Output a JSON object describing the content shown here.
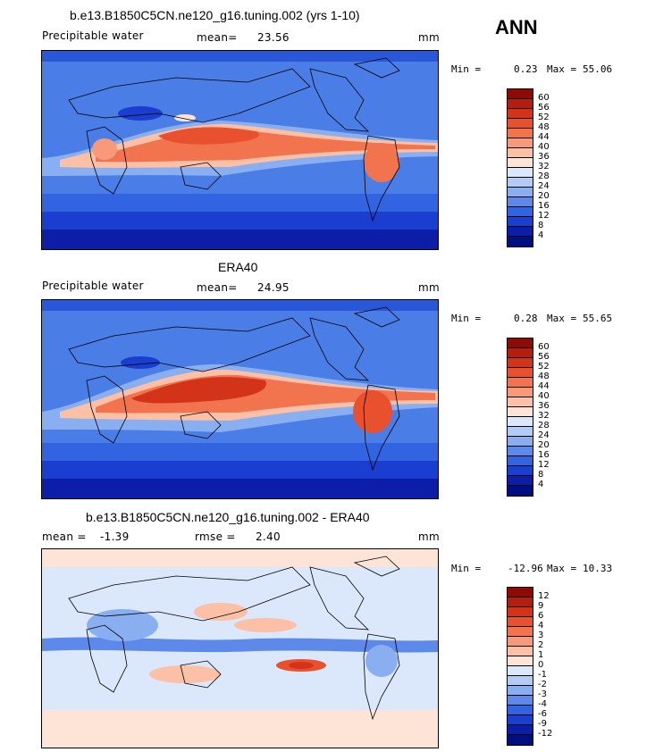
{
  "season": "ANN",
  "panels": [
    {
      "title": "b.e13.B1850C5CN.ne120_g16.tuning.002 (yrs 1-10)",
      "variable": "Precipitable water",
      "stat1_label": "mean=",
      "stat1_value": "23.56",
      "stat2_label": "",
      "stat2_value": "",
      "units": "mm",
      "min_label": "Min =",
      "min_value": "0.23",
      "max_label": "Max =",
      "max_value": "55.06",
      "colorbar_labels": [
        "60",
        "56",
        "52",
        "48",
        "44",
        "40",
        "36",
        "32",
        "28",
        "24",
        "20",
        "16",
        "12",
        "8",
        "4"
      ],
      "colorbar_colors": [
        "#8e0a06",
        "#b41e0f",
        "#d33419",
        "#e9502d",
        "#f2744f",
        "#f89a7a",
        "#fbc0a6",
        "#fde4d6",
        "#dbe7fb",
        "#b3ccf5",
        "#8aaff0",
        "#5d8aea",
        "#3263e0",
        "#1a3fd0",
        "#0c1ea8",
        "#000f80"
      ]
    },
    {
      "title": "ERA40",
      "variable": "Precipitable water",
      "stat1_label": "mean=",
      "stat1_value": "24.95",
      "stat2_label": "",
      "stat2_value": "",
      "units": "mm",
      "min_label": "Min =",
      "min_value": "0.28",
      "max_label": "Max =",
      "max_value": "55.65",
      "colorbar_labels": [
        "60",
        "56",
        "52",
        "48",
        "44",
        "40",
        "36",
        "32",
        "28",
        "24",
        "20",
        "16",
        "12",
        "8",
        "4"
      ],
      "colorbar_colors": [
        "#8e0a06",
        "#b41e0f",
        "#d33419",
        "#e9502d",
        "#f2744f",
        "#f89a7a",
        "#fbc0a6",
        "#fde4d6",
        "#dbe7fb",
        "#b3ccf5",
        "#8aaff0",
        "#5d8aea",
        "#3263e0",
        "#1a3fd0",
        "#0c1ea8",
        "#000f80"
      ]
    },
    {
      "title": "b.e13.B1850C5CN.ne120_g16.tuning.002 - ERA40",
      "variable": "",
      "stat1_label": "mean =",
      "stat1_value": "-1.39",
      "stat2_label": "rmse =",
      "stat2_value": "2.40",
      "units": "mm",
      "min_label": "Min =",
      "min_value": "-12.96",
      "max_label": "Max =",
      "max_value": "10.33",
      "colorbar_labels": [
        "12",
        "9",
        "6",
        "4",
        "3",
        "2",
        "1",
        "0",
        "-1",
        "-2",
        "-3",
        "-4",
        "-6",
        "-9",
        "-12"
      ],
      "colorbar_colors": [
        "#8e0a06",
        "#b41e0f",
        "#d33419",
        "#e9502d",
        "#f2744f",
        "#f89a7a",
        "#fbc0a6",
        "#fde4d6",
        "#dbe7fb",
        "#b3ccf5",
        "#8aaff0",
        "#5d8aea",
        "#3263e0",
        "#1a3fd0",
        "#0c1ea8",
        "#000f80"
      ]
    }
  ]
}
